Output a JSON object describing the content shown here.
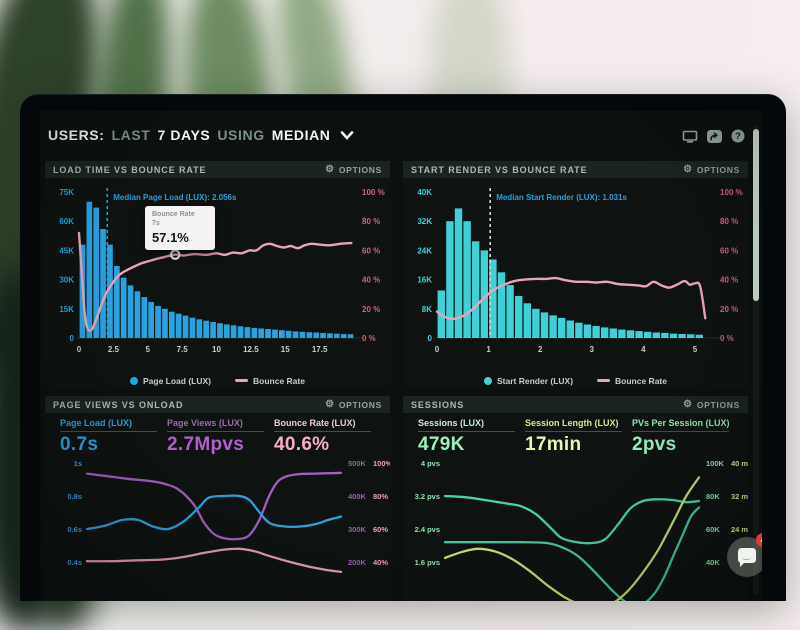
{
  "ui": {
    "header": {
      "parts": [
        {
          "text": "USERS:",
          "emphasis": "strong"
        },
        {
          "text": "LAST",
          "emphasis": "dim"
        },
        {
          "text": "7 DAYS",
          "emphasis": "strong"
        },
        {
          "text": "USING",
          "emphasis": "dim"
        },
        {
          "text": "MEDIAN",
          "emphasis": "strong"
        }
      ]
    },
    "options_label": "OPTIONS",
    "window_icons": [
      "monitor-icon",
      "share-icon",
      "help-icon"
    ],
    "chat": {
      "badge": "4",
      "icon": "chat-bubble-icon"
    }
  },
  "chart_data": [
    {
      "id": "load-time-vs-bounce",
      "type": "bar+line",
      "title": "LOAD TIME VS BOUNCE RATE",
      "x_unit": "seconds",
      "x_ticks": [
        "0",
        "2.5",
        "5",
        "7.5",
        "10",
        "12.5",
        "15",
        "17.5"
      ],
      "x_max": 20,
      "y_left": {
        "ticks": [
          "75K",
          "60K",
          "45K",
          "30K",
          "15K",
          "0"
        ],
        "max_k": 75,
        "color": "#2BA2E0"
      },
      "y_right": {
        "ticks": [
          "100 %",
          "80 %",
          "60 %",
          "40 %",
          "20 %",
          "0 %"
        ],
        "color": "#D5607D"
      },
      "bars": {
        "name": "Page Load (LUX)",
        "bin_width": 0.5,
        "color": "#2BA2E0",
        "values_k": [
          48,
          70,
          67,
          56,
          48,
          37,
          31,
          27,
          24,
          21,
          18.5,
          16.5,
          15,
          13.5,
          12.5,
          11.5,
          10.5,
          9.6,
          8.9,
          8.2,
          7.6,
          7,
          6.5,
          6,
          5.6,
          5.2,
          4.9,
          4.6,
          4.3,
          4,
          3.7,
          3.4,
          3.2,
          3,
          2.8,
          2.6,
          2.4,
          2.2,
          2,
          1.9
        ]
      },
      "line": {
        "name": "Bounce Rate",
        "color": "#E9A4B8",
        "points": [
          [
            0,
            72
          ],
          [
            0.2,
            45
          ],
          [
            0.4,
            18
          ],
          [
            0.6,
            7
          ],
          [
            0.8,
            5
          ],
          [
            1,
            7
          ],
          [
            1.3,
            14
          ],
          [
            1.6,
            22
          ],
          [
            2,
            31
          ],
          [
            2.4,
            37
          ],
          [
            2.8,
            42
          ],
          [
            3.2,
            45
          ],
          [
            3.8,
            48
          ],
          [
            4.5,
            51
          ],
          [
            5.2,
            53
          ],
          [
            6,
            55
          ],
          [
            7,
            57.1
          ],
          [
            7.6,
            56.5
          ],
          [
            8.4,
            57.5
          ],
          [
            9.2,
            57
          ],
          [
            10,
            58
          ],
          [
            10.6,
            57
          ],
          [
            11.2,
            58.5
          ],
          [
            11.8,
            58
          ],
          [
            12.4,
            60
          ],
          [
            12.9,
            60
          ],
          [
            13.4,
            63.5
          ],
          [
            13.9,
            64.5
          ],
          [
            14.4,
            63
          ],
          [
            14.9,
            62
          ],
          [
            15.4,
            63
          ],
          [
            15.9,
            61.5
          ],
          [
            16.4,
            63.5
          ],
          [
            16.9,
            64.5
          ],
          [
            17.5,
            64
          ],
          [
            18.2,
            63.5
          ],
          [
            19,
            64.5
          ],
          [
            19.8,
            65
          ]
        ]
      },
      "median": {
        "x": 2.056,
        "label": "Median Page Load (LUX): 2.056s",
        "color": "#2F9FD6",
        "line_color": "#2F9FD6"
      },
      "tooltip": {
        "series": "Bounce Rate",
        "x_label": "7s",
        "value": "57.1%",
        "x": 7,
        "pct": 57.1
      },
      "legend": [
        {
          "label": "Page Load (LUX)",
          "marker": "dot",
          "color": "#2BA2E0"
        },
        {
          "label": "Bounce Rate",
          "marker": "line",
          "color": "#E9A4B8"
        }
      ]
    },
    {
      "id": "start-render-vs-bounce",
      "type": "bar+line",
      "title": "START RENDER VS BOUNCE RATE",
      "x_unit": "seconds",
      "x_ticks": [
        "0",
        "1",
        "2",
        "3",
        "4",
        "5"
      ],
      "x_max": 5.33,
      "y_left": {
        "ticks": [
          "40K",
          "32K",
          "24K",
          "16K",
          "8K",
          "0"
        ],
        "max_k": 40,
        "color": "#3ED2D8"
      },
      "y_right": {
        "ticks": [
          "100 %",
          "80 %",
          "60 %",
          "40 %",
          "20 %",
          "0 %"
        ],
        "color": "#D5607D"
      },
      "bars": {
        "name": "Start Render (LUX)",
        "bin_width": 0.1667,
        "color": "#3ED2D8",
        "values_k": [
          13,
          32,
          35.5,
          32,
          26.5,
          24,
          21.5,
          18,
          14.5,
          11.5,
          9.5,
          8,
          7,
          6.2,
          5.5,
          4.8,
          4.2,
          3.7,
          3.3,
          2.9,
          2.6,
          2.3,
          2.1,
          1.9,
          1.7,
          1.5,
          1.4,
          1.2,
          1.1,
          1,
          0.9
        ]
      },
      "line": {
        "name": "Bounce Rate",
        "color": "#E9A4B8",
        "points": [
          [
            0,
            18
          ],
          [
            0.15,
            14.5
          ],
          [
            0.3,
            13
          ],
          [
            0.5,
            15
          ],
          [
            0.7,
            20
          ],
          [
            0.9,
            27
          ],
          [
            1.1,
            33
          ],
          [
            1.3,
            36.5
          ],
          [
            1.5,
            39
          ],
          [
            1.7,
            40
          ],
          [
            1.9,
            40.5
          ],
          [
            2.1,
            40.5
          ],
          [
            2.3,
            41
          ],
          [
            2.5,
            39.5
          ],
          [
            2.7,
            38.5
          ],
          [
            2.9,
            38.5
          ],
          [
            3.1,
            38
          ],
          [
            3.3,
            38.5
          ],
          [
            3.5,
            37
          ],
          [
            3.7,
            36.5
          ],
          [
            3.9,
            36
          ],
          [
            4.05,
            35.5
          ],
          [
            4.2,
            38.5
          ],
          [
            4.35,
            36
          ],
          [
            4.5,
            34.5
          ],
          [
            4.65,
            36.5
          ],
          [
            4.8,
            39
          ],
          [
            4.9,
            36.5
          ],
          [
            5,
            37.5
          ],
          [
            5.1,
            35.5
          ],
          [
            5.2,
            13.5
          ]
        ]
      },
      "median": {
        "x": 1.031,
        "label": "Median Start Render (LUX): 1.031s",
        "color": "#2F9FD6",
        "line_color": "#CFDCD4"
      },
      "legend": [
        {
          "label": "Start Render (LUX)",
          "marker": "dot",
          "color": "#3ED2D8"
        },
        {
          "label": "Bounce Rate",
          "marker": "line",
          "color": "#E9A4B8"
        }
      ]
    },
    {
      "id": "page-views-vs-onload",
      "type": "line",
      "title": "PAGE VIEWS VS ONLOAD",
      "metrics": [
        {
          "label": "Page Load (LUX)",
          "value": "0.7s",
          "color": "#2BA2E0",
          "value_color": "#2BA2E0"
        },
        {
          "label": "Page Views (LUX)",
          "value": "2.7Mpvs",
          "color": "#9C6BAB",
          "value_color": "#B55ECF"
        },
        {
          "label": "Bounce Rate (LUX)",
          "value": "40.6%",
          "color": "#EDCAD6",
          "value_color": "#F5AFC7"
        }
      ],
      "axes": {
        "left": {
          "ticks": [
            "1s",
            "0.8s",
            "0.6s",
            "0.4s"
          ],
          "color": "#2BA2E0"
        },
        "right": [
          {
            "ticks": [
              "500K",
              "400K",
              "300K",
              "200K"
            ],
            "color": "#9C5FAE"
          },
          {
            "ticks": [
              "100%",
              "80%",
              "60%",
              "40%"
            ],
            "color": "#EE9FB9"
          }
        ]
      },
      "series": [
        {
          "name": "Page Views (LUX)",
          "unit": "pageviews",
          "color": "#A45EC0",
          "tick_values": [
            500,
            200
          ],
          "points": [
            [
              0,
              468
            ],
            [
              0.08,
              460
            ],
            [
              0.16,
              452
            ],
            [
              0.24,
              446
            ],
            [
              0.3,
              438
            ],
            [
              0.36,
              420
            ],
            [
              0.42,
              375
            ],
            [
              0.46,
              320
            ],
            [
              0.5,
              285
            ],
            [
              0.54,
              272
            ],
            [
              0.6,
              270
            ],
            [
              0.64,
              282
            ],
            [
              0.68,
              330
            ],
            [
              0.72,
              405
            ],
            [
              0.76,
              450
            ],
            [
              0.82,
              465
            ],
            [
              0.9,
              468
            ],
            [
              1,
              470
            ]
          ]
        },
        {
          "name": "Page Load (LUX)",
          "unit": "s",
          "color": "#2BA2E0",
          "tick_values": [
            1,
            0.4
          ],
          "points": [
            [
              0,
              0.6
            ],
            [
              0.07,
              0.62
            ],
            [
              0.14,
              0.655
            ],
            [
              0.2,
              0.655
            ],
            [
              0.26,
              0.615
            ],
            [
              0.32,
              0.6
            ],
            [
              0.38,
              0.645
            ],
            [
              0.44,
              0.73
            ],
            [
              0.48,
              0.79
            ],
            [
              0.54,
              0.8
            ],
            [
              0.6,
              0.8
            ],
            [
              0.64,
              0.775
            ],
            [
              0.68,
              0.7
            ],
            [
              0.72,
              0.635
            ],
            [
              0.78,
              0.615
            ],
            [
              0.84,
              0.615
            ],
            [
              0.9,
              0.63
            ],
            [
              0.95,
              0.655
            ],
            [
              1,
              0.675
            ]
          ]
        },
        {
          "name": "Bounce Rate (LUX)",
          "unit": "%",
          "color": "#E59AB5",
          "tick_values": [
            100,
            40
          ],
          "points": [
            [
              0,
              40.5
            ],
            [
              0.1,
              40.5
            ],
            [
              0.2,
              41
            ],
            [
              0.3,
              41.5
            ],
            [
              0.38,
              43
            ],
            [
              0.46,
              45.5
            ],
            [
              0.54,
              47.5
            ],
            [
              0.6,
              48
            ],
            [
              0.66,
              46.5
            ],
            [
              0.72,
              43.5
            ],
            [
              0.8,
              40
            ],
            [
              0.88,
              37
            ],
            [
              0.95,
              35
            ],
            [
              1,
              34
            ]
          ]
        }
      ]
    },
    {
      "id": "sessions",
      "type": "line",
      "title": "SESSIONS",
      "metrics": [
        {
          "label": "Sessions (LUX)",
          "value": "479K",
          "color": "#CDE9D6",
          "value_color": "#98F2BA"
        },
        {
          "label": "Session Length (LUX)",
          "value": "17min",
          "color": "#D6E98C",
          "value_color": "#EAF6B0"
        },
        {
          "label": "PVs Per Session (LUX)",
          "value": "2pvs",
          "color": "#93E7B0",
          "value_color": "#93F2B6"
        }
      ],
      "axes": {
        "left": {
          "ticks": [
            "4 pvs",
            "3.2 pvs",
            "2.4 pvs",
            "1.6 pvs"
          ],
          "color": "#8FE3AE"
        },
        "right": [
          {
            "ticks": [
              "100K",
              "80K",
              "60K",
              "40K"
            ],
            "color": "#8FE3AE"
          },
          {
            "ticks": [
              "40 min",
              "32 min",
              "24 min",
              ""
            ],
            "color": "#D6E98C"
          }
        ]
      },
      "series": [
        {
          "name": "PVs Per Session (LUX)",
          "unit": "pvs",
          "color": "#45D6A8",
          "tick_values": [
            4,
            1.6
          ],
          "points": [
            [
              0,
              3.2
            ],
            [
              0.08,
              3.17
            ],
            [
              0.16,
              3.1
            ],
            [
              0.24,
              3.02
            ],
            [
              0.3,
              2.95
            ],
            [
              0.36,
              2.75
            ],
            [
              0.42,
              2.4
            ],
            [
              0.46,
              2.18
            ],
            [
              0.52,
              2.08
            ],
            [
              0.58,
              2.06
            ],
            [
              0.63,
              2.15
            ],
            [
              0.68,
              2.5
            ],
            [
              0.73,
              2.9
            ],
            [
              0.78,
              3.08
            ],
            [
              0.84,
              3.12
            ],
            [
              0.9,
              3.1
            ],
            [
              0.95,
              3.05
            ],
            [
              1,
              3.08
            ]
          ]
        },
        {
          "name": "Sessions (LUX)",
          "unit": "K",
          "color": "#3CCDA0",
          "tick_values": [
            100,
            40
          ],
          "points": [
            [
              0,
              52
            ],
            [
              0.15,
              52
            ],
            [
              0.3,
              52
            ],
            [
              0.4,
              51.5
            ],
            [
              0.46,
              49
            ],
            [
              0.52,
              44
            ],
            [
              0.57,
              37
            ],
            [
              0.62,
              29
            ],
            [
              0.67,
              21
            ],
            [
              0.72,
              15
            ],
            [
              0.77,
              14
            ],
            [
              0.82,
              20
            ],
            [
              0.86,
              30
            ],
            [
              0.9,
              44
            ],
            [
              0.94,
              58
            ],
            [
              0.97,
              68
            ],
            [
              1,
              73
            ]
          ]
        },
        {
          "name": "Session Length (LUX)",
          "unit": "min",
          "color": "#C9E070",
          "tick_values": [
            40,
            16
          ],
          "points": [
            [
              0,
              17
            ],
            [
              0.07,
              18.5
            ],
            [
              0.13,
              19.2
            ],
            [
              0.2,
              18.5
            ],
            [
              0.27,
              16.5
            ],
            [
              0.34,
              13.5
            ],
            [
              0.4,
              10.5
            ],
            [
              0.47,
              7.5
            ],
            [
              0.54,
              5.5
            ],
            [
              0.6,
              5
            ],
            [
              0.66,
              6
            ],
            [
              0.72,
              9
            ],
            [
              0.78,
              13.5
            ],
            [
              0.84,
              19
            ],
            [
              0.9,
              26
            ],
            [
              0.95,
              32
            ],
            [
              1,
              36.5
            ]
          ]
        }
      ]
    }
  ]
}
